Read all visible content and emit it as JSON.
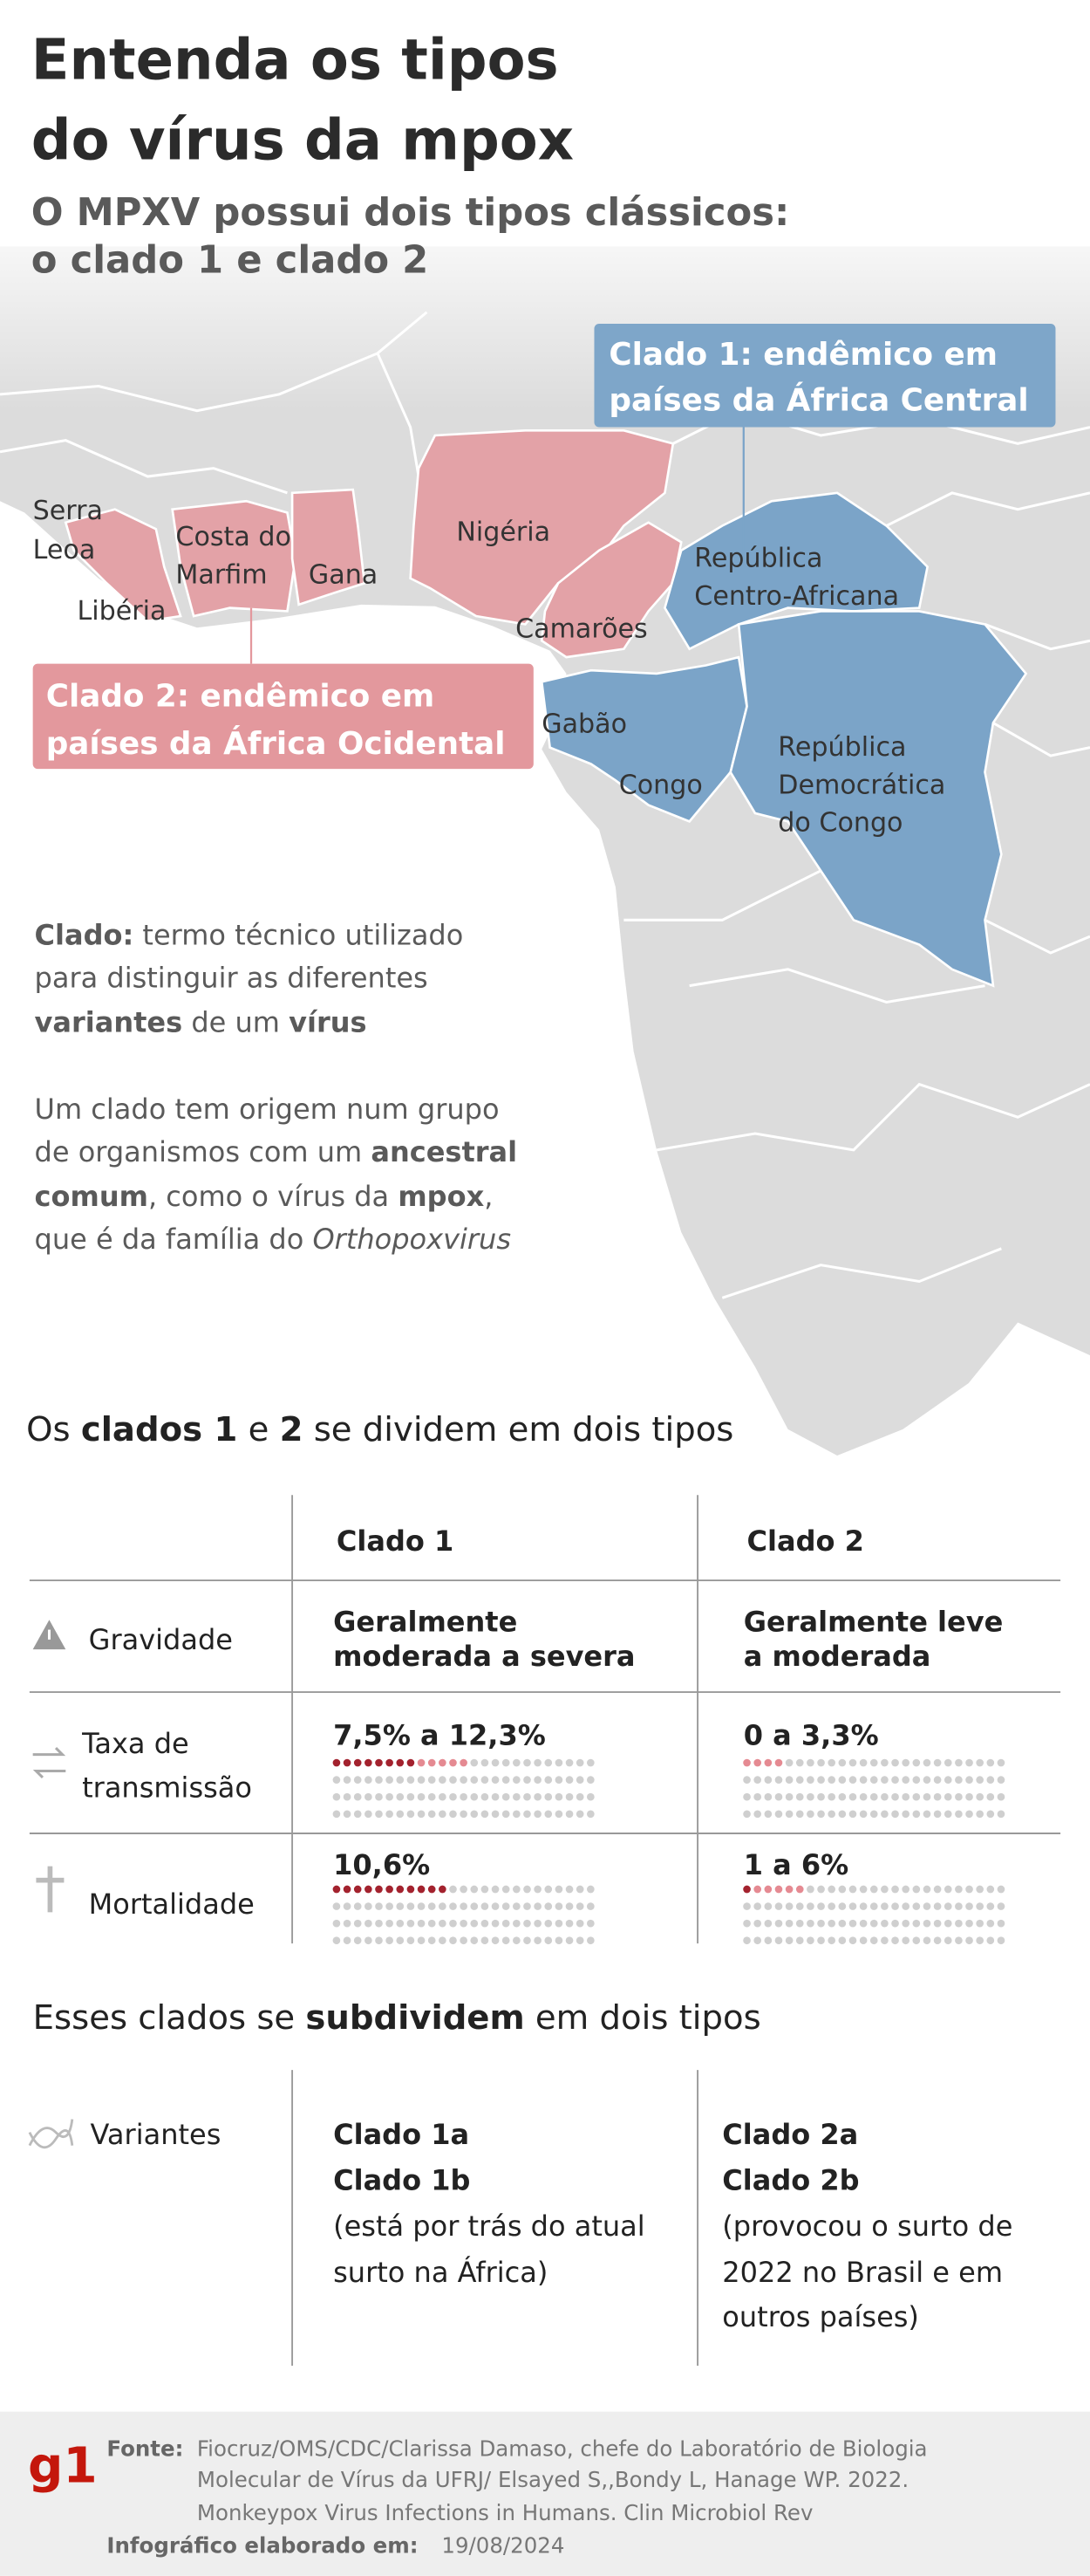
{
  "header": {
    "title": [
      "Entenda os tipos",
      "do vírus da mpox"
    ],
    "subtitle": [
      "O MPXV possui dois tipos clássicos:",
      "o clado 1 e clado 2"
    ]
  },
  "map": {
    "clade_labels": [
      [
        "Clado 1: endêmico em",
        "países da África Central"
      ],
      [
        "Clado 2: endêmico em",
        "países da África Ocidental"
      ]
    ],
    "countries": [
      [
        "Serra",
        "Leoa"
      ],
      [
        "Libéria"
      ],
      [
        "Costa do",
        "Marfim"
      ],
      [
        "Gana"
      ],
      [
        "Nigéria"
      ],
      [
        "Camarões"
      ],
      [
        "República",
        "Centro-Africana"
      ],
      [
        "Gabão"
      ],
      [
        "Congo"
      ],
      [
        "República",
        "Democrática",
        "do Congo"
      ]
    ]
  },
  "definition": [
    [
      [
        "Clado:",
        " termo técnico utilizado"
      ],
      [
        "para distinguir as diferentes"
      ],
      [
        "variantes",
        " de um ",
        "vírus"
      ]
    ],
    [
      [
        "Um clado tem origem num grupo"
      ],
      [
        "de organismos com um ",
        "ancestral"
      ],
      [
        "comum",
        ", como o vírus da ",
        "mpox",
        ","
      ],
      [
        "que é da família do ",
        "Orthopoxvirus"
      ]
    ]
  ],
  "table": {
    "heading": [
      "Os ",
      "clados 1",
      " e ",
      "2",
      " se dividem em dois tipos"
    ],
    "columns": [
      "Clado 1",
      "Clado 2"
    ],
    "rows": [
      {
        "label": [
          "Gravidade"
        ],
        "cells": [
          {
            "text": [
              "Geralmente",
              "moderada a severa"
            ]
          },
          {
            "text": [
              "Geralmente leve",
              "a moderada"
            ]
          }
        ]
      },
      {
        "label": [
          "Taxa de",
          "transmissão"
        ],
        "cells": [
          {
            "label": "7,5% a 12,3%",
            "values": [
              7.5,
              12.3
            ]
          },
          {
            "label": "0 a 3,3%",
            "values": [
              0,
              3.3
            ]
          }
        ]
      },
      {
        "label": [
          "Mortalidade"
        ],
        "cells": [
          {
            "label": "10,6%",
            "values": [
              10.6
            ]
          },
          {
            "label": "1 a 6%",
            "values": [
              1,
              6
            ]
          }
        ]
      }
    ]
  },
  "variants": {
    "heading": [
      "Esses clados se ",
      "subdividem",
      " em dois tipos"
    ],
    "label": "Variantes",
    "columns": [
      [
        "Clado 1a",
        "Clado 1b",
        "(está por trás do atual",
        "surto na África)"
      ],
      [
        "Clado 2a",
        "Clado 2b",
        "(provocou o surto de",
        "2022 no Brasil e em",
        "outros países)"
      ]
    ]
  },
  "footer": {
    "logo": "g1",
    "source_label": "Fonte:",
    "source": [
      "Fiocruz/OMS/CDC/Clarissa Damaso, chefe do Laboratório de Biologia",
      "Molecular de Vírus da UFRJ/ Elsayed S,,Bondy L, Hanage WP. 2022.",
      "Monkeypox Virus Infections in Humans. Clin Microbiol Rev"
    ],
    "date_label": "Infográfico elaborado em:",
    "date": "19/08/2024"
  }
}
